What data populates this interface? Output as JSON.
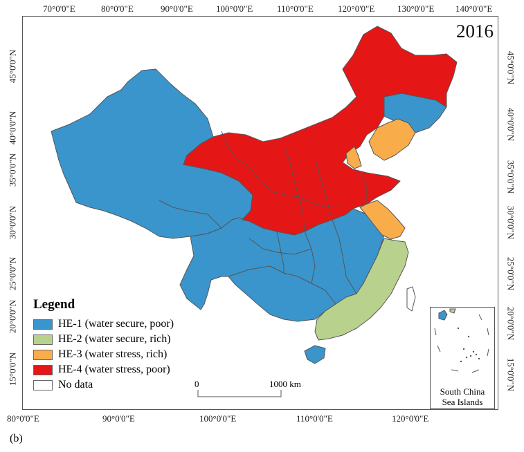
{
  "map": {
    "year": "2016",
    "top_ticks": [
      "70°0'0\"E",
      "80°0'0\"E",
      "90°0'0\"E",
      "100°0'0\"E",
      "110°0'0\"E",
      "120°0'0\"E",
      "130°0'0\"E",
      "140°0'0\"E"
    ],
    "bottom_ticks": [
      "80°0'0\"E",
      "90°0'0\"E",
      "100°0'0\"E",
      "110°0'0\"E",
      "120°0'0\"E"
    ],
    "left_ticks": [
      "45°0'0\"N",
      "40°0'0\"N",
      "35°0'0\"N",
      "30°0'0\"N",
      "25°0'0\"N",
      "20°0'0\"N",
      "15°0'0\"N"
    ],
    "right_ticks": [
      "45°0'0\"N",
      "40°0'0\"N",
      "35°0'0\"N",
      "30°0'0\"N",
      "25°0'0\"N",
      "20°0'0\"N",
      "15°0'0\"N"
    ],
    "colors": {
      "he1": "#3a95cc",
      "he2": "#b8d28e",
      "he3": "#f9ad4a",
      "he4": "#e51616",
      "nodata": "#ffffff",
      "border": "#555555"
    }
  },
  "legend": {
    "title": "Legend",
    "items": [
      {
        "label": "HE-1 (water secure, poor)",
        "color": "#3a95cc"
      },
      {
        "label": "HE-2 (water secure, rich)",
        "color": "#b8d28e"
      },
      {
        "label": "HE-3 (water stress, rich)",
        "color": "#f9ad4a"
      },
      {
        "label": "HE-4 (water stress, poor)",
        "color": "#e51616"
      },
      {
        "label": "No data",
        "color": "#ffffff"
      }
    ]
  },
  "scale": {
    "start": "0",
    "end": "1000 km"
  },
  "inset": {
    "line1": "South China",
    "line2": "Sea Islands"
  },
  "caption": "(b)"
}
